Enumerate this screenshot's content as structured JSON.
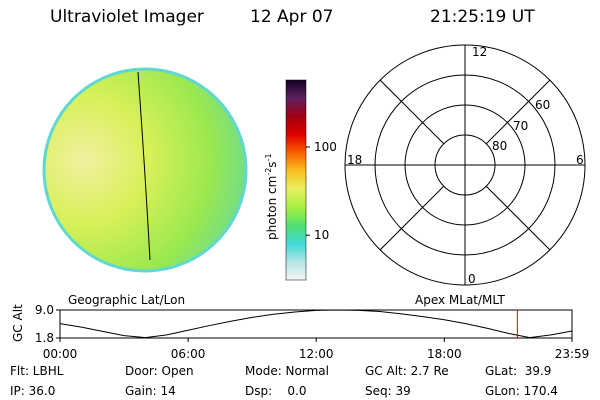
{
  "header": {
    "title": "Ultraviolet Imager",
    "date": "12 Apr 07",
    "time": "21:25:19 UT"
  },
  "colorbar": {
    "label": "photon cm",
    "exp1": "-2",
    "unit2": "s",
    "exp2": "-1",
    "log": true,
    "ylim": [
      3.1,
      575
    ],
    "yticks": [
      10,
      100
    ],
    "colors": [
      "#f4f4f4",
      "#b4e4e4",
      "#40d8d8",
      "#50e070",
      "#a8f040",
      "#e8f060",
      "#f8c020",
      "#f86000",
      "#e00000",
      "#a00010",
      "#602060",
      "#100020"
    ]
  },
  "polar": {
    "labels": {
      "top": "12",
      "right": "6",
      "bottom": "0",
      "left": "18"
    },
    "rings": [
      "80",
      "70",
      "60"
    ]
  },
  "panel_labels": {
    "left": "Geographic Lat/Lon",
    "right": "Apex MLat/MLT"
  },
  "chart_data": {
    "type": "line",
    "ylabel": "GC Alt",
    "color": "#000000",
    "cursor_x": 21.42,
    "cursor_color": "#e00000",
    "x": [
      0,
      1,
      2,
      3,
      4,
      5,
      6,
      7,
      8,
      9,
      10,
      11,
      12,
      13,
      14,
      15,
      16,
      17,
      18,
      19,
      20,
      21,
      22,
      23,
      23.98
    ],
    "values": [
      5.5,
      4.6,
      3.5,
      2.4,
      1.9,
      2.6,
      3.8,
      5.0,
      6.1,
      7.1,
      7.9,
      8.5,
      8.9,
      9.0,
      8.9,
      8.6,
      8.0,
      7.3,
      6.5,
      5.5,
      4.3,
      3.0,
      1.9,
      2.6,
      3.6
    ],
    "xlim": [
      0,
      23.98
    ],
    "ylim": [
      1.8,
      9.0
    ],
    "xticks": [
      {
        "value": 0,
        "label": "00:00"
      },
      {
        "value": 6,
        "label": "06:00"
      },
      {
        "value": 12,
        "label": "12:00"
      },
      {
        "value": 18,
        "label": "18:00"
      },
      {
        "value": 23.98,
        "label": "23:59"
      }
    ],
    "yticks": [
      {
        "value": 1.8,
        "label": "1.8"
      },
      {
        "value": 9.0,
        "label": "9.0"
      }
    ]
  },
  "footer": {
    "rows": [
      [
        "Flt: LBHL",
        "Door: Open",
        "Mode: Normal",
        "GC Alt: 2.7 Re",
        "GLat:  39.9"
      ],
      [
        "IP: 36.0",
        "Gain: 14",
        "Dsp:    0.0",
        "Seq: 39",
        "GLon: 170.4"
      ]
    ]
  }
}
